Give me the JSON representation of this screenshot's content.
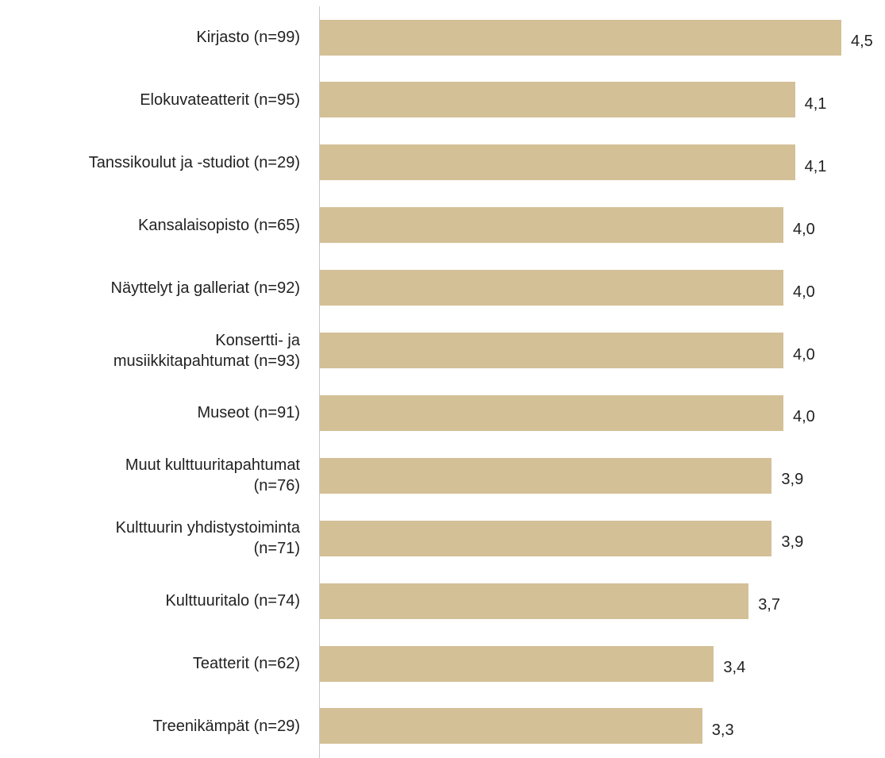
{
  "chart_data": {
    "type": "bar",
    "orientation": "horizontal",
    "color": "#d4c097",
    "categories": [
      "Kirjasto (n=99)",
      "Elokuvateatterit (n=95)",
      "Tanssikoulut ja -studiot (n=29)",
      "Kansalaisopisto (n=65)",
      "Näyttelyt ja galleriat (n=92)",
      "Konsertti- ja\nmusiikkitapahtumat (n=93)",
      "Museot (n=91)",
      "Muut kulttuuritapahtumat\n(n=76)",
      "Kulttuurin yhdistystoiminta\n(n=71)",
      "Kulttuuritalo (n=74)",
      "Teatterit (n=62)",
      "Treenikämpät (n=29)"
    ],
    "values": [
      4.5,
      4.1,
      4.1,
      4.0,
      4.0,
      4.0,
      4.0,
      3.9,
      3.9,
      3.7,
      3.4,
      3.3
    ],
    "value_labels": [
      "4,5",
      "4,1",
      "4,1",
      "4,0",
      "4,0",
      "4,0",
      "4,0",
      "3,9",
      "3,9",
      "3,7",
      "3,4",
      "3,3"
    ]
  }
}
